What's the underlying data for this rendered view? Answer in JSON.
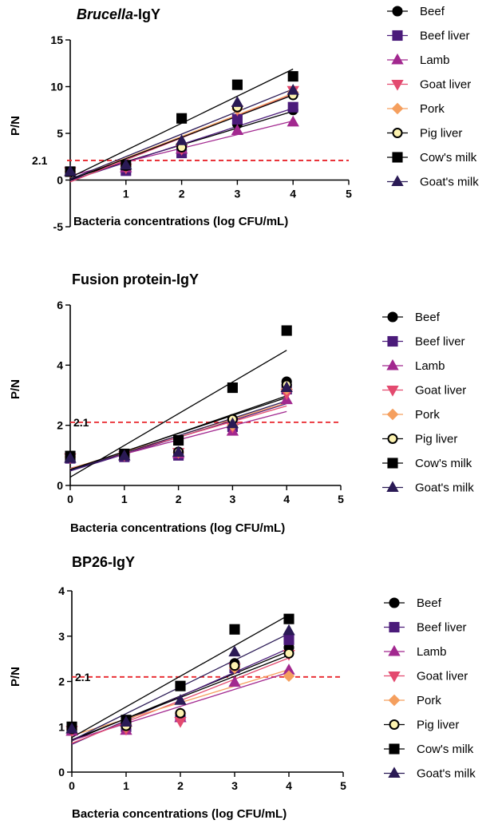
{
  "figure": {
    "series_styles": [
      {
        "name": "Beef",
        "marker": "circle",
        "color": "#000000",
        "fill": "#000000"
      },
      {
        "name": "Beef liver",
        "marker": "square",
        "color": "#4b1b7a",
        "fill": "#4b1b7a"
      },
      {
        "name": "Lamb",
        "marker": "triangle-up",
        "color": "#a2288f",
        "fill": "#a2288f"
      },
      {
        "name": "Goat liver",
        "marker": "triangle-down",
        "color": "#e34a6f",
        "fill": "#e34a6f"
      },
      {
        "name": "Pork",
        "marker": "diamond",
        "color": "#f59f5e",
        "fill": "#f59f5e"
      },
      {
        "name": "Pig liver",
        "marker": "circle-open",
        "color": "#000000",
        "fill": "#fdf3b0"
      },
      {
        "name": "Cow's milk",
        "marker": "square",
        "color": "#000000",
        "fill": "#000000"
      },
      {
        "name": "Goat's milk",
        "marker": "triangle-up",
        "color": "#2a1a55",
        "fill": "#2a1a55"
      }
    ],
    "reference_line": {
      "value": 2.1,
      "label": "2.1",
      "color": "#e8262c"
    }
  },
  "chart_data": [
    {
      "type": "scatter",
      "title_italic": "Brucella",
      "title_rest": "-IgY",
      "xlabel": "Bacteria concentrations (log CFU/mL)",
      "ylabel": "P/N",
      "xlim": [
        0,
        5
      ],
      "ylim": [
        -5,
        15
      ],
      "x_ticks": [
        1,
        2,
        3,
        4,
        5
      ],
      "y_ticks": [
        -5,
        0,
        5,
        10,
        15
      ],
      "x_axis_at": 0,
      "x": [
        0,
        1,
        2,
        3,
        4
      ],
      "series": [
        {
          "name": "Beef",
          "values": [
            0.9,
            1.2,
            3.2,
            6.0,
            7.5
          ]
        },
        {
          "name": "Beef liver",
          "values": [
            0.9,
            1.0,
            2.9,
            6.5,
            7.8
          ]
        },
        {
          "name": "Lamb",
          "values": [
            0.9,
            1.3,
            3.3,
            5.3,
            6.2
          ]
        },
        {
          "name": "Goat liver",
          "values": [
            0.9,
            1.3,
            3.3,
            7.5,
            9.6
          ]
        },
        {
          "name": "Pork",
          "values": [
            0.9,
            1.5,
            3.9,
            7.6,
            9.4
          ]
        },
        {
          "name": "Pig liver",
          "values": [
            0.9,
            1.5,
            3.5,
            7.8,
            9.1
          ]
        },
        {
          "name": "Cow's milk",
          "values": [
            0.9,
            1.6,
            6.6,
            10.2,
            11.1
          ]
        },
        {
          "name": "Goat's milk",
          "values": [
            0.9,
            1.6,
            4.2,
            8.3,
            9.6
          ]
        }
      ],
      "legend": [
        "Beef",
        "Beef liver",
        "Lamb",
        "Goat liver",
        "Pork",
        "Pig liver",
        "Cow's milk",
        "Goat's milk"
      ]
    },
    {
      "type": "scatter",
      "title_italic": "",
      "title_rest": "Fusion protein-IgY",
      "xlabel": "Bacteria concentrations (log CFU/mL)",
      "ylabel": "P/N",
      "xlim": [
        0,
        5
      ],
      "ylim": [
        0,
        6
      ],
      "x_ticks": [
        0,
        1,
        2,
        3,
        4,
        5
      ],
      "y_ticks": [
        0,
        2,
        4,
        6
      ],
      "x_axis_at": 0,
      "x": [
        0,
        1,
        2,
        3,
        4
      ],
      "series": [
        {
          "name": "Beef",
          "values": [
            0.95,
            1.0,
            1.1,
            2.2,
            3.45
          ]
        },
        {
          "name": "Beef liver",
          "values": [
            0.9,
            0.95,
            1.0,
            1.95,
            3.2
          ]
        },
        {
          "name": "Lamb",
          "values": [
            0.9,
            0.98,
            1.05,
            1.8,
            2.85
          ]
        },
        {
          "name": "Goat liver",
          "values": [
            0.92,
            1.0,
            1.1,
            1.95,
            3.05
          ]
        },
        {
          "name": "Pork",
          "values": [
            0.95,
            1.02,
            1.1,
            2.0,
            3.2
          ]
        },
        {
          "name": "Pig liver",
          "values": [
            0.95,
            1.02,
            1.12,
            2.2,
            3.35
          ]
        },
        {
          "name": "Cow's milk",
          "values": [
            0.98,
            1.05,
            1.5,
            3.25,
            5.15
          ]
        },
        {
          "name": "Goat's milk",
          "values": [
            0.9,
            0.98,
            1.1,
            2.05,
            3.25
          ]
        }
      ],
      "legend": [
        "Beef",
        "Beef liver",
        "Lamb",
        "Goat liver",
        "Pork",
        "Pig liver",
        "Cow's milk",
        "Goat's milk"
      ]
    },
    {
      "type": "scatter",
      "title_italic": "",
      "title_rest": "BP26-IgY",
      "xlabel": "Bacteria concentrations (log CFU/mL)",
      "ylabel": "P/N",
      "xlim": [
        0,
        5
      ],
      "ylim": [
        0,
        4
      ],
      "x_ticks": [
        0,
        1,
        2,
        3,
        4,
        5
      ],
      "y_ticks": [
        0,
        1,
        2,
        3,
        4
      ],
      "x_axis_at": 0,
      "x": [
        0,
        1,
        2,
        3,
        4
      ],
      "series": [
        {
          "name": "Beef",
          "values": [
            0.95,
            1.05,
            1.25,
            2.4,
            2.75
          ]
        },
        {
          "name": "Beef liver",
          "values": [
            0.92,
            1.0,
            1.22,
            2.3,
            2.92
          ]
        },
        {
          "name": "Lamb",
          "values": [
            0.9,
            0.92,
            1.2,
            1.98,
            2.25
          ]
        },
        {
          "name": "Goat liver",
          "values": [
            0.92,
            0.95,
            1.12,
            2.3,
            2.6
          ]
        },
        {
          "name": "Pork",
          "values": [
            0.95,
            1.0,
            1.3,
            2.3,
            2.12
          ]
        },
        {
          "name": "Pig liver",
          "values": [
            0.95,
            1.02,
            1.3,
            2.35,
            2.62
          ]
        },
        {
          "name": "Cow's milk",
          "values": [
            1.0,
            1.15,
            1.9,
            3.15,
            3.38
          ]
        },
        {
          "name": "Goat's milk",
          "values": [
            0.95,
            1.1,
            1.58,
            2.65,
            3.12
          ]
        }
      ],
      "legend": [
        "Beef",
        "Beef liver",
        "Lamb",
        "Goat liver",
        "Pork",
        "Pig liver",
        "Cow's milk",
        "Goat's milk"
      ]
    }
  ]
}
